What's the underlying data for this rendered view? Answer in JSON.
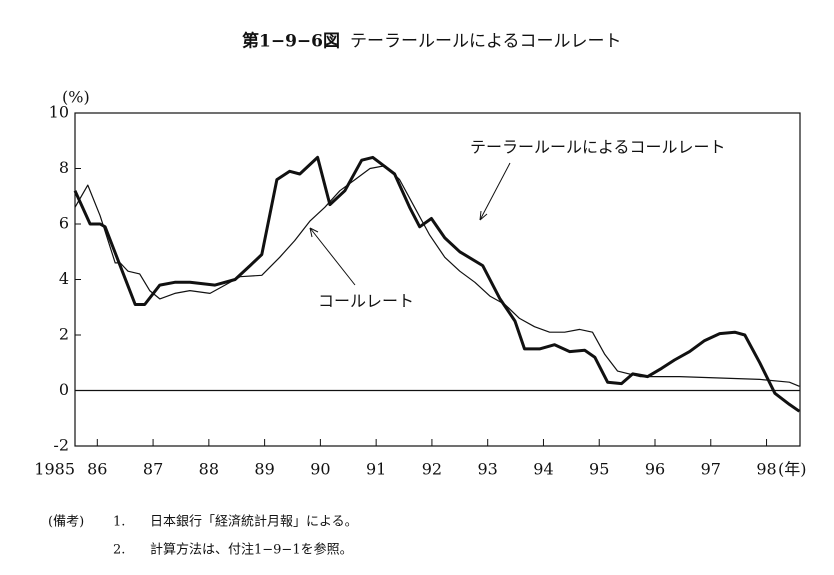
{
  "chart_data": {
    "type": "line",
    "figure_number": "第1−9−6図",
    "title": "テーラールールによるコールレート",
    "y_unit": "(%)",
    "x_unit": "(年)",
    "xlim": [
      1985.6,
      1998.6
    ],
    "xticks": [
      {
        "value": 1985.6,
        "label": "1985"
      },
      {
        "value": 1986,
        "label": "86"
      },
      {
        "value": 1987,
        "label": "87"
      },
      {
        "value": 1988,
        "label": "88"
      },
      {
        "value": 1989,
        "label": "89"
      },
      {
        "value": 1990,
        "label": "90"
      },
      {
        "value": 1991,
        "label": "91"
      },
      {
        "value": 1992,
        "label": "92"
      },
      {
        "value": 1993,
        "label": "93"
      },
      {
        "value": 1994,
        "label": "94"
      },
      {
        "value": 1995,
        "label": "95"
      },
      {
        "value": 1996,
        "label": "96"
      },
      {
        "value": 1997,
        "label": "97"
      },
      {
        "value": 1998,
        "label": "98"
      }
    ],
    "ylim": [
      -2,
      10
    ],
    "yticks": [
      -2,
      0,
      2,
      4,
      6,
      8,
      10
    ],
    "series": [
      {
        "name": "テーラールールによるコールレート",
        "color": "#111111",
        "width": 3,
        "x": [
          1985.6,
          1985.87,
          1986.05,
          1986.14,
          1986.68,
          1986.85,
          1987.12,
          1987.39,
          1987.66,
          1988.11,
          1988.47,
          1988.74,
          1988.95,
          1989.22,
          1989.45,
          1989.63,
          1989.95,
          1990.17,
          1990.44,
          1990.74,
          1990.94,
          1991.33,
          1991.6,
          1991.78,
          1991.99,
          1992.23,
          1992.5,
          1992.91,
          1993.22,
          1993.49,
          1993.66,
          1993.93,
          1994.2,
          1994.47,
          1994.74,
          1994.92,
          1995.15,
          1995.4,
          1995.6,
          1995.87,
          1996.12,
          1996.35,
          1996.62,
          1996.89,
          1997.16,
          1997.43,
          1997.61,
          1997.88,
          1998.15,
          1998.41,
          1998.59
        ],
        "values": [
          7.2,
          6.0,
          6.0,
          5.9,
          3.1,
          3.1,
          3.8,
          3.9,
          3.9,
          3.8,
          4.0,
          4.5,
          4.9,
          7.6,
          7.9,
          7.8,
          8.4,
          6.7,
          7.2,
          8.3,
          8.4,
          7.8,
          6.6,
          5.9,
          6.2,
          5.5,
          5.0,
          4.5,
          3.3,
          2.5,
          1.5,
          1.5,
          1.65,
          1.4,
          1.45,
          1.2,
          0.3,
          0.25,
          0.6,
          0.5,
          0.8,
          1.1,
          1.4,
          1.8,
          2.05,
          2.1,
          2.0,
          1.0,
          -0.1,
          -0.5,
          -0.75
        ]
      },
      {
        "name": "コールレート",
        "color": "#111111",
        "width": 1.2,
        "x": [
          1985.6,
          1985.83,
          1986.05,
          1986.32,
          1986.41,
          1986.55,
          1986.76,
          1986.94,
          1987.12,
          1987.39,
          1987.66,
          1988.02,
          1988.29,
          1988.56,
          1988.95,
          1989.27,
          1989.54,
          1989.81,
          1990.08,
          1990.35,
          1990.62,
          1990.89,
          1991.16,
          1991.42,
          1991.69,
          1991.96,
          1992.23,
          1992.5,
          1992.77,
          1993.04,
          1993.31,
          1993.57,
          1993.84,
          1994.11,
          1994.38,
          1994.65,
          1994.88,
          1995.1,
          1995.33,
          1995.73,
          1996.44,
          1997.16,
          1997.88,
          1998.41,
          1998.59
        ],
        "values": [
          6.6,
          7.4,
          6.3,
          4.6,
          4.6,
          4.3,
          4.2,
          3.6,
          3.3,
          3.5,
          3.6,
          3.5,
          3.8,
          4.1,
          4.15,
          4.8,
          5.4,
          6.1,
          6.6,
          7.2,
          7.6,
          8.0,
          8.1,
          7.6,
          6.6,
          5.6,
          4.8,
          4.3,
          3.9,
          3.4,
          3.1,
          2.6,
          2.3,
          2.1,
          2.1,
          2.2,
          2.1,
          1.3,
          0.7,
          0.5,
          0.5,
          0.45,
          0.4,
          0.3,
          0.15
        ]
      }
    ],
    "zero_line": true
  },
  "notes": {
    "label": "(備考)",
    "items": [
      {
        "number": "1.",
        "text": "日本銀行「経済統計月報」による。"
      },
      {
        "number": "2.",
        "text": "計算方法は、付注1−9−1を参照。"
      }
    ]
  }
}
